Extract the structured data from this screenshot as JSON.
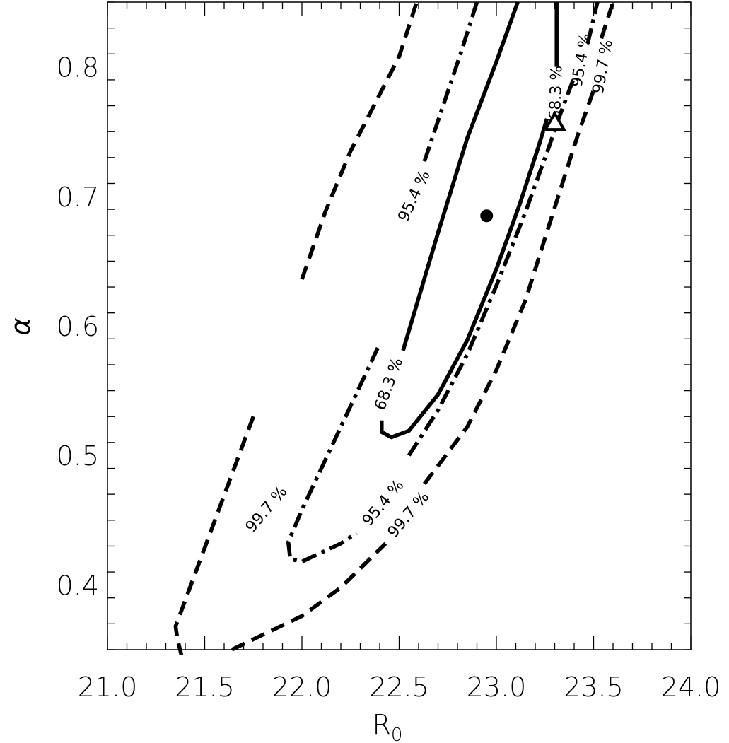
{
  "chart_data": {
    "type": "contour",
    "xlabel": "R",
    "xlabel_sub": "0",
    "ylabel": "α",
    "xlim": [
      21.0,
      24.0
    ],
    "ylim": [
      0.35,
      0.85
    ],
    "x_ticks": [
      21.0,
      21.5,
      22.0,
      22.5,
      23.0,
      23.5,
      24.0
    ],
    "x_tick_labels": [
      "21.0",
      "21.5",
      "22.0",
      "22.5",
      "23.0",
      "23.5",
      "24.0"
    ],
    "y_ticks": [
      0.4,
      0.5,
      0.6,
      0.7,
      0.8
    ],
    "y_tick_labels": [
      "0.4",
      "0.5",
      "0.6",
      "0.7",
      "0.8"
    ],
    "contours": [
      {
        "level": "68.3 %",
        "style": "solid",
        "segments": [
          [
            [
              22.52,
              0.581
            ],
            [
              22.7,
              0.672
            ],
            [
              22.85,
              0.745
            ],
            [
              23.0,
              0.804
            ],
            [
              23.11,
              0.85
            ]
          ],
          [
            [
              22.41,
              0.527
            ],
            [
              22.41,
              0.518
            ],
            [
              22.46,
              0.514
            ],
            [
              22.55,
              0.519
            ],
            [
              22.7,
              0.547
            ],
            [
              22.85,
              0.589
            ],
            [
              23.0,
              0.644
            ],
            [
              23.12,
              0.694
            ],
            [
              23.22,
              0.74
            ],
            [
              23.26,
              0.76
            ]
          ],
          [
            [
              23.31,
              0.8
            ],
            [
              23.31,
              0.85
            ]
          ]
        ],
        "labels": [
          {
            "text": "68.3 %",
            "x": 22.45,
            "y": 0.555,
            "angle": -70
          },
          {
            "text": "68.3 %",
            "x": 23.31,
            "y": 0.78,
            "angle": -88
          }
        ]
      },
      {
        "level": "95.4 %",
        "style": "dashdot",
        "segments": [
          [
            [
              22.63,
              0.727
            ],
            [
              22.82,
              0.812
            ],
            [
              22.9,
              0.85
            ]
          ],
          [
            [
              22.39,
              0.583
            ],
            [
              22.2,
              0.522
            ],
            [
              22.0,
              0.458
            ],
            [
              21.93,
              0.433
            ],
            [
              21.94,
              0.42
            ],
            [
              22.0,
              0.418
            ],
            [
              22.2,
              0.432
            ],
            [
              22.28,
              0.44
            ]
          ],
          [
            [
              22.55,
              0.5
            ],
            [
              22.7,
              0.535
            ],
            [
              22.85,
              0.578
            ],
            [
              23.0,
              0.631
            ],
            [
              23.15,
              0.688
            ],
            [
              23.27,
              0.738
            ],
            [
              23.33,
              0.764
            ],
            [
              23.4,
              0.792
            ]
          ],
          [
            [
              23.47,
              0.818
            ],
            [
              23.52,
              0.85
            ]
          ]
        ],
        "labels": [
          {
            "text": "95.4 %",
            "x": 22.58,
            "y": 0.7,
            "angle": -65
          },
          {
            "text": "95.4 %",
            "x": 22.42,
            "y": 0.463,
            "angle": -50
          },
          {
            "text": "95.4 %",
            "x": 23.44,
            "y": 0.805,
            "angle": -80
          }
        ]
      },
      {
        "level": "99.7 %",
        "style": "dashed",
        "segments": [
          [
            [
              22.0,
              0.636
            ],
            [
              22.12,
              0.688
            ],
            [
              22.25,
              0.735
            ],
            [
              22.5,
              0.808
            ],
            [
              22.59,
              0.85
            ]
          ],
          [
            [
              21.75,
              0.53
            ],
            [
              21.35,
              0.368
            ],
            [
              21.36,
              0.358
            ],
            [
              21.38,
              0.346
            ]
          ],
          [
            [
              21.64,
              0.35
            ],
            [
              21.75,
              0.358
            ],
            [
              22.0,
              0.376
            ],
            [
              22.2,
              0.398
            ],
            [
              22.43,
              0.432
            ]
          ],
          [
            [
              22.63,
              0.478
            ],
            [
              22.85,
              0.522
            ],
            [
              23.0,
              0.566
            ],
            [
              23.15,
              0.62
            ],
            [
              23.28,
              0.682
            ],
            [
              23.42,
              0.748
            ],
            [
              23.5,
              0.782
            ]
          ],
          [
            [
              23.54,
              0.822
            ],
            [
              23.6,
              0.85
            ]
          ]
        ],
        "labels": [
          {
            "text": "99.7 %",
            "x": 21.82,
            "y": 0.458,
            "angle": -50
          },
          {
            "text": "99.7 %",
            "x": 22.55,
            "y": 0.454,
            "angle": -50
          },
          {
            "text": "99.7 %",
            "x": 23.55,
            "y": 0.8,
            "angle": -80
          }
        ]
      }
    ],
    "markers": [
      {
        "shape": "circle",
        "filled": true,
        "x": 22.95,
        "y": 0.685
      },
      {
        "shape": "triangle",
        "filled": false,
        "x": 23.3,
        "y": 0.757
      }
    ],
    "grid": false,
    "legend": "none"
  }
}
